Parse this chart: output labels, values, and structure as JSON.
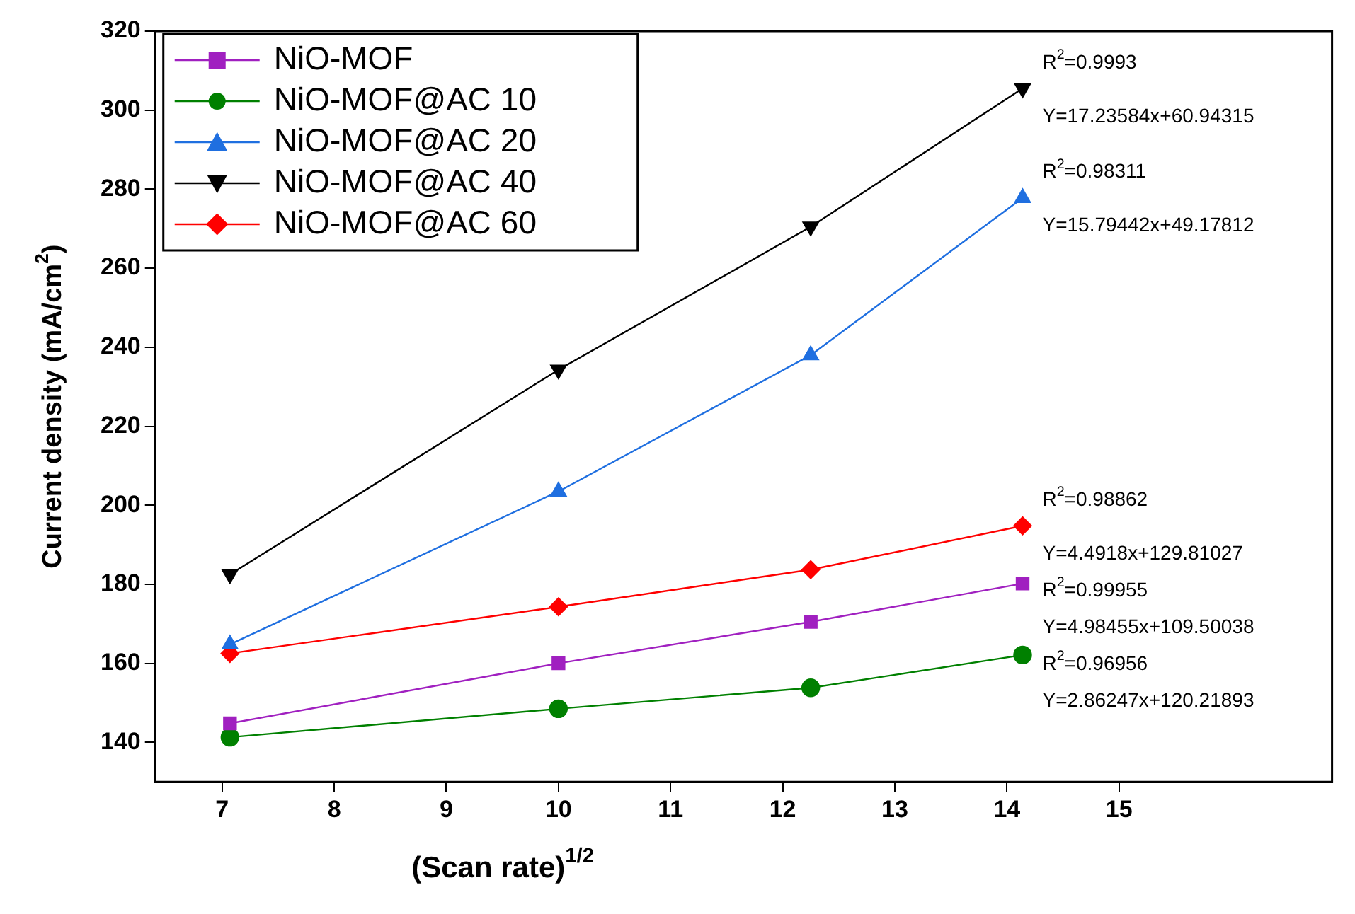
{
  "chart_data": {
    "type": "line",
    "xlabel": "(Scan rate)$^{1/2}$",
    "ylabel": "Current density (mA/cm$^{2}$)",
    "xlim": [
      6.4,
      16.9
    ],
    "xticks": [
      7,
      8,
      9,
      10,
      11,
      12,
      13,
      14,
      15
    ],
    "ylim": [
      130,
      320
    ],
    "yticks": [
      140,
      160,
      180,
      200,
      220,
      240,
      260,
      280,
      300,
      320
    ],
    "grid": false,
    "legend": "top left",
    "series": [
      {
        "name": "NiO-MOF",
        "color": "#a020c0",
        "marker": "square",
        "x": [
          7.07,
          10,
          12.25,
          14.14
        ],
        "values": [
          144.8,
          160,
          170.5,
          180.2
        ]
      },
      {
        "name": "NiO-MOF@AC 10",
        "color": "#008000",
        "marker": "circle",
        "x": [
          7.07,
          10,
          12.25,
          14.14
        ],
        "values": [
          141.3,
          148.5,
          153.8,
          162.1
        ]
      },
      {
        "name": "NiO-MOF@AC 20",
        "color": "#1f6fe0",
        "marker": "triangle",
        "x": [
          7.07,
          10,
          12.25,
          14.14
        ],
        "values": [
          164.8,
          203.5,
          238,
          277.8
        ]
      },
      {
        "name": "NiO-MOF@AC 40",
        "color": "#000000",
        "marker": "triangle-down",
        "x": [
          7.07,
          10,
          12.25,
          14.14
        ],
        "values": [
          182.5,
          234.3,
          270.5,
          305.5
        ]
      },
      {
        "name": "NiO-MOF@AC 60",
        "color": "#ff0000",
        "marker": "diamond",
        "x": [
          7.07,
          10,
          12.25,
          14.14
        ],
        "values": [
          162.5,
          174.3,
          183.7,
          194.8
        ]
      }
    ],
    "annotations": [
      "R$^{2}$=0.9993",
      "Y=17.23584x+60.94315",
      "R$^{2}$=0.98311",
      "Y=15.79442x+49.17812",
      "R$^{2}$=0.98862",
      "Y=4.4918x+129.81027",
      "R$^{2}$=0.99955",
      "Y=4.98455x+109.50038",
      "R$^{2}$=0.96956",
      "Y=2.86247x+120.21893"
    ]
  }
}
